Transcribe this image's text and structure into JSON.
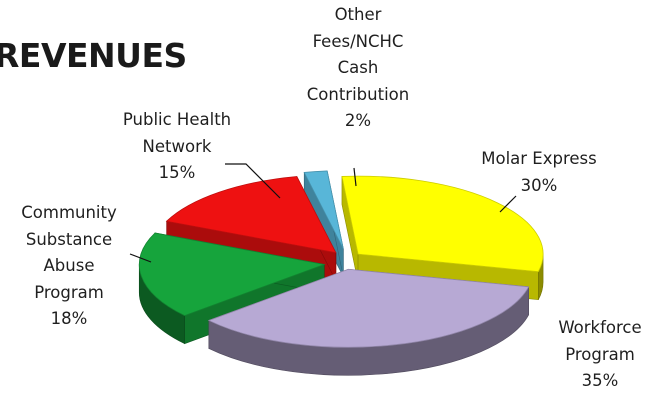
{
  "chart_data": {
    "type": "pie",
    "title": "REVENUES",
    "slices": [
      {
        "name": "Molar Express",
        "value": 30,
        "pct_label": "30%",
        "color": "#ffff00"
      },
      {
        "name": "Workforce Program",
        "value": 35,
        "pct_label": "35%",
        "color": "#b7a9d4"
      },
      {
        "name": "Community Substance Abuse Program",
        "value": 18,
        "pct_label": "18%",
        "color": "#16a43c"
      },
      {
        "name": "Public Health Network",
        "value": 15,
        "pct_label": "15%",
        "color": "#ee1111"
      },
      {
        "name": "Other Fees/NCHC Cash Contribution",
        "value": 2,
        "pct_label": "2%",
        "color": "#58b6d8"
      }
    ],
    "label_lines": {
      "molar": [
        "Molar Express"
      ],
      "workforce": [
        "Workforce",
        "Program"
      ],
      "community": [
        "Community",
        "Substance",
        "Abuse",
        "Program"
      ],
      "public": [
        "Public Health",
        "Network"
      ],
      "other": [
        "Other",
        "Fees/NCHC",
        "Cash",
        "Contribution"
      ]
    },
    "legend": "none",
    "style": "3d-exploded"
  }
}
